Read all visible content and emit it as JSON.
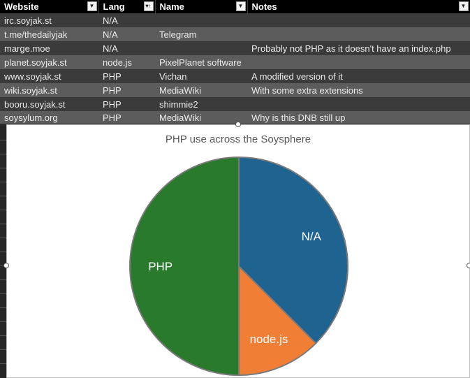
{
  "table": {
    "headers": [
      {
        "label": "Website",
        "filter_icon": "dropdown-arrow-icon"
      },
      {
        "label": "Lang",
        "filter_icon": "sort-filter-icon"
      },
      {
        "label": "Name",
        "filter_icon": "dropdown-arrow-icon"
      },
      {
        "label": "Notes",
        "filter_icon": "dropdown-arrow-icon"
      }
    ],
    "rows": [
      [
        "irc.soyjak.st",
        "N/A",
        "",
        ""
      ],
      [
        "t.me/thedailyjak",
        "N/A",
        "Telegram",
        ""
      ],
      [
        "marge.moe",
        "N/A",
        "",
        "Probably not PHP as it doesn't have an index.php"
      ],
      [
        "planet.soyjak.st",
        "node.js",
        "PixelPlanet software",
        ""
      ],
      [
        "www.soyjak.st",
        "PHP",
        "Vichan",
        "A modified version of it"
      ],
      [
        "wiki.soyjak.st",
        "PHP",
        "MediaWiki",
        "With some extra extensions"
      ],
      [
        "booru.soyjak.st",
        "PHP",
        "shimmie2",
        ""
      ],
      [
        "soysylum.org",
        "PHP",
        "MediaWiki",
        "Why is this DNB still up"
      ]
    ]
  },
  "chart_data": {
    "type": "pie",
    "title": "PHP use across the Soysphere",
    "slices": [
      {
        "label": "N/A",
        "value": 3,
        "color": "#1f6391"
      },
      {
        "label": "node.js",
        "value": 1,
        "color": "#f07f35"
      },
      {
        "label": "PHP",
        "value": 4,
        "color": "#2a7a2e"
      }
    ],
    "legend": "none",
    "data_labels": "category names on slices"
  }
}
